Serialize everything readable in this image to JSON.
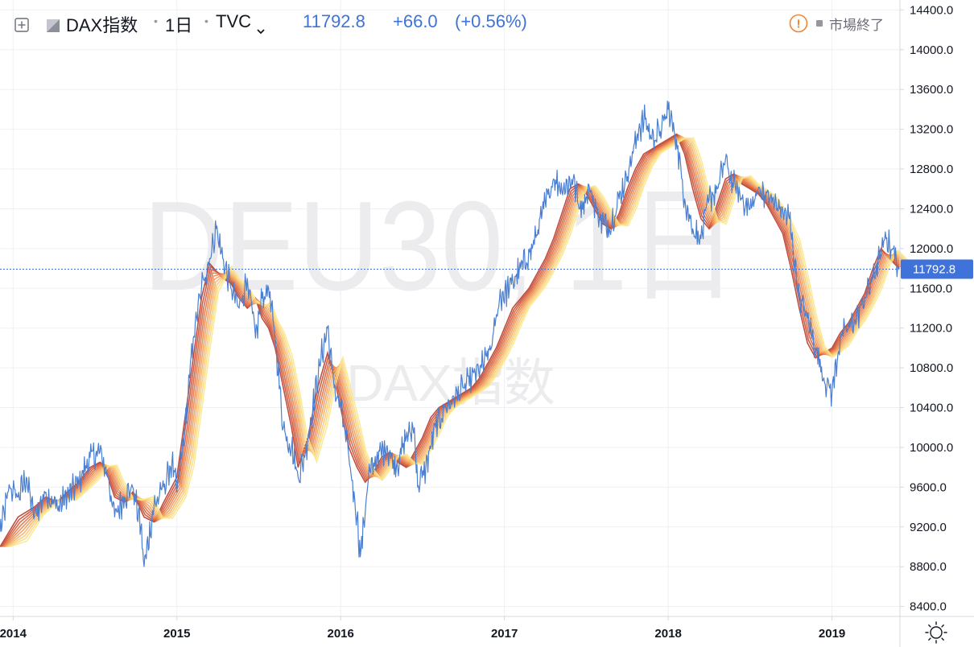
{
  "legend": {
    "expand_icon": "plus-square-icon",
    "symbol": "DAX指数",
    "interval": "1日",
    "exchange": "TVC",
    "last": "11792.8",
    "change": "+66.0",
    "change_pct": "(+0.56%)",
    "alert_glyph": "!",
    "market_status": "市場終了"
  },
  "watermark": {
    "main": "DEU30, 1日",
    "sub": "DAX指数"
  },
  "price_axis": {
    "ticks": [
      "14400.0",
      "14000.0",
      "13600.0",
      "13200.0",
      "12800.0",
      "12400.0",
      "12000.0",
      "11600.0",
      "11200.0",
      "10800.0",
      "10400.0",
      "10000.0",
      "9600.0",
      "9200.0",
      "8800.0",
      "8400.0"
    ],
    "last_label": "11792.8"
  },
  "time_axis": {
    "ticks": [
      "2014",
      "2015",
      "2016",
      "2017",
      "2018",
      "2019"
    ]
  },
  "settings_icon": "sun-icon",
  "colors": {
    "price_line": "#4a7fd1",
    "ribbon": [
      "#b93a2a",
      "#c84c32",
      "#d45e3a",
      "#e07043",
      "#ea864d",
      "#f19c58",
      "#f6b265",
      "#f9c873",
      "#fbda7e",
      "#fce88a"
    ],
    "grid": "#eef0f3",
    "last_line": "#3f73d9",
    "alert": "#f08432"
  },
  "chart_data": {
    "type": "line",
    "ylim": [
      8300,
      14500
    ],
    "xlim": [
      2013.92,
      2019.41
    ],
    "grid": true,
    "series": [
      {
        "role": "price",
        "x": [
          2013.92,
          2013.98,
          2014.03,
          2014.08,
          2014.13,
          2014.2,
          2014.27,
          2014.33,
          2014.4,
          2014.47,
          2014.53,
          2014.58,
          2014.62,
          2014.68,
          2014.73,
          2014.78,
          2014.8,
          2014.86,
          2014.92,
          2014.97,
          2015.0,
          2015.05,
          2015.1,
          2015.15,
          2015.2,
          2015.24,
          2015.28,
          2015.33,
          2015.38,
          2015.43,
          2015.48,
          2015.52,
          2015.56,
          2015.6,
          2015.65,
          2015.7,
          2015.74,
          2015.78,
          2015.83,
          2015.88,
          2015.92,
          2015.96,
          2016.0,
          2016.05,
          2016.1,
          2016.12,
          2016.17,
          2016.22,
          2016.28,
          2016.34,
          2016.4,
          2016.45,
          2016.47,
          2016.52,
          2016.58,
          2016.64,
          2016.7,
          2016.75,
          2016.8,
          2016.86,
          2016.92,
          2016.97,
          2017.03,
          2017.1,
          2017.17,
          2017.24,
          2017.3,
          2017.36,
          2017.42,
          2017.46,
          2017.52,
          2017.58,
          2017.64,
          2017.7,
          2017.76,
          2017.82,
          2017.86,
          2017.9,
          2017.96,
          2018.0,
          2018.05,
          2018.1,
          2018.15,
          2018.2,
          2018.25,
          2018.3,
          2018.35,
          2018.38,
          2018.45,
          2018.5,
          2018.56,
          2018.62,
          2018.68,
          2018.74,
          2018.8,
          2018.85,
          2018.9,
          2018.95,
          2019.0,
          2019.05,
          2019.1,
          2019.15,
          2019.2,
          2019.25,
          2019.29,
          2019.33,
          2019.37,
          2019.41
        ],
        "y": [
          9150,
          9600,
          9500,
          9700,
          9300,
          9550,
          9400,
          9500,
          9650,
          9900,
          9950,
          9700,
          9300,
          9500,
          9600,
          9200,
          8800,
          9400,
          9600,
          9850,
          9550,
          10200,
          11100,
          11600,
          11900,
          12200,
          11900,
          11600,
          11400,
          11700,
          11100,
          11500,
          11600,
          11100,
          10200,
          10000,
          9700,
          9900,
          10400,
          10900,
          11200,
          10600,
          10400,
          9900,
          9300,
          8900,
          9700,
          9900,
          10000,
          9800,
          10100,
          10200,
          9600,
          9800,
          10200,
          10400,
          10500,
          10600,
          10700,
          10800,
          11000,
          11500,
          11600,
          11800,
          12000,
          12400,
          12700,
          12600,
          12700,
          12400,
          12600,
          12300,
          12200,
          12500,
          12800,
          13200,
          13300,
          13100,
          13200,
          13400,
          13100,
          12500,
          12200,
          12100,
          12500,
          12600,
          12900,
          12700,
          12500,
          12400,
          12600,
          12500,
          12400,
          12300,
          11500,
          11300,
          11000,
          10700,
          10550,
          11100,
          11200,
          11300,
          11500,
          11700,
          11900,
          12100,
          12000,
          11792.8
        ]
      },
      {
        "role": "moving-average-ribbon",
        "x": [
          2013.92,
          2014.03,
          2014.13,
          2014.2,
          2014.27,
          2014.33,
          2014.4,
          2014.47,
          2014.53,
          2014.58,
          2014.62,
          2014.68,
          2014.73,
          2014.8,
          2014.86,
          2014.92,
          2015.0,
          2015.05,
          2015.1,
          2015.15,
          2015.2,
          2015.28,
          2015.33,
          2015.38,
          2015.43,
          2015.48,
          2015.52,
          2015.56,
          2015.6,
          2015.65,
          2015.7,
          2015.74,
          2015.8,
          2015.86,
          2015.92,
          2015.96,
          2016.0,
          2016.05,
          2016.1,
          2016.15,
          2016.2,
          2016.25,
          2016.3,
          2016.35,
          2016.4,
          2016.45,
          2016.5,
          2016.55,
          2016.6,
          2016.65,
          2016.7,
          2016.75,
          2016.8,
          2016.85,
          2016.9,
          2016.95,
          2017.0,
          2017.05,
          2017.1,
          2017.15,
          2017.2,
          2017.25,
          2017.3,
          2017.35,
          2017.4,
          2017.45,
          2017.5,
          2017.55,
          2017.6,
          2017.65,
          2017.7,
          2017.75,
          2017.8,
          2017.85,
          2017.9,
          2017.95,
          2018.0,
          2018.05,
          2018.1,
          2018.15,
          2018.2,
          2018.25,
          2018.3,
          2018.35,
          2018.4,
          2018.45,
          2018.5,
          2018.55,
          2018.6,
          2018.65,
          2018.7,
          2018.75,
          2018.8,
          2018.85,
          2018.9,
          2018.95,
          2019.0,
          2019.05,
          2019.1,
          2019.15,
          2019.2,
          2019.25,
          2019.3,
          2019.35,
          2019.41
        ],
        "y": [
          9000,
          9300,
          9400,
          9500,
          9450,
          9550,
          9650,
          9800,
          9850,
          9700,
          9500,
          9450,
          9550,
          9300,
          9250,
          9450,
          9700,
          10300,
          10900,
          11500,
          11850,
          11700,
          11650,
          11500,
          11400,
          11500,
          11300,
          11200,
          11000,
          10600,
          10200,
          9800,
          10100,
          10600,
          10950,
          10700,
          10400,
          10000,
          9800,
          9650,
          9750,
          9900,
          9950,
          9850,
          9800,
          9950,
          10100,
          10300,
          10400,
          10450,
          10500,
          10550,
          10600,
          10700,
          10850,
          11000,
          11200,
          11400,
          11500,
          11600,
          11750,
          11900,
          12100,
          12350,
          12600,
          12650,
          12550,
          12400,
          12250,
          12200,
          12350,
          12600,
          12800,
          12950,
          13000,
          13050,
          13100,
          13150,
          12950,
          12600,
          12300,
          12200,
          12450,
          12700,
          12750,
          12650,
          12600,
          12550,
          12450,
          12300,
          12150,
          11800,
          11400,
          11050,
          10900,
          10950,
          11000,
          11150,
          11250,
          11400,
          11550,
          11800,
          12000,
          11900,
          11800
        ]
      }
    ]
  }
}
